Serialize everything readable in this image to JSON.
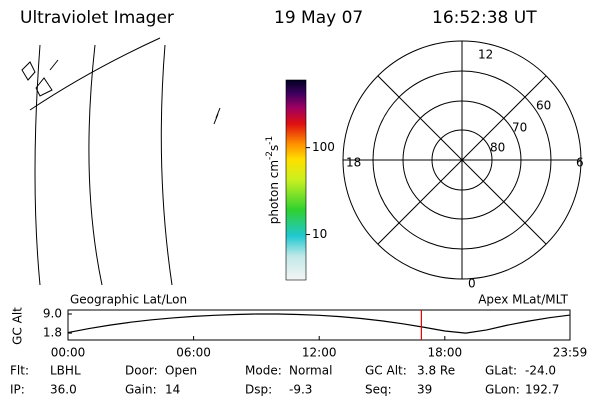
{
  "header": {
    "title": "Ultraviolet Imager",
    "date": "19 May 07",
    "time": "16:52:38 UT"
  },
  "colorbar": {
    "label": [
      "photon cm",
      "-2",
      "s",
      "-1"
    ],
    "clim": [
      3,
      600
    ],
    "log_scale": true,
    "ticks": [
      10,
      100
    ]
  },
  "polar": {
    "lat_labels": [
      "60",
      "70",
      "80"
    ],
    "mlt_labels": [
      "12",
      "18",
      "6",
      "0"
    ]
  },
  "chart_data": {
    "type": "line",
    "y_label": "GC Alt",
    "left_label": "Geographic Lat/Lon",
    "right_label": "Apex MLat/MLT",
    "x": [
      0,
      1,
      2,
      3,
      4,
      5,
      6,
      7,
      8,
      9,
      10,
      11,
      12,
      13,
      14,
      15,
      16,
      17,
      18,
      19,
      20,
      21,
      22,
      23,
      23.98
    ],
    "series": [
      {
        "name": "GC Alt",
        "color": "#000000",
        "values": [
          2.0,
          3.5,
          4.8,
          5.9,
          6.8,
          7.5,
          8.1,
          8.5,
          8.8,
          9.0,
          9.0,
          8.8,
          8.5,
          8.0,
          7.3,
          6.4,
          5.3,
          4.0,
          2.6,
          1.8,
          3.0,
          4.8,
          6.3,
          7.6,
          8.6
        ]
      }
    ],
    "current_time": 16.88,
    "marker_color": "#e00000",
    "xlim": [
      0,
      23.98
    ],
    "ylim": [
      -0.8,
      10.5
    ],
    "xticks": [
      {
        "value": 0,
        "label": "00:00"
      },
      {
        "value": 6,
        "label": "06:00"
      },
      {
        "value": 12,
        "label": "12:00"
      },
      {
        "value": 18,
        "label": "18:00"
      },
      {
        "value": 23.98,
        "label": "23:59"
      }
    ],
    "yticks": [
      {
        "value": 9.0,
        "label": "9.0"
      },
      {
        "value": 1.8,
        "label": "1.8"
      }
    ]
  },
  "info": {
    "rows": [
      [
        [
          "Flt:",
          "LBHL"
        ],
        [
          "Door:",
          "Open"
        ],
        [
          "Mode:",
          "Normal"
        ],
        [
          "GC Alt:",
          "3.8 Re"
        ],
        [
          "GLat:",
          "-24.0"
        ]
      ],
      [
        [
          "IP:",
          "36.0"
        ],
        [
          "Gain:",
          "14"
        ],
        [
          "Dsp:",
          "-9.3"
        ],
        [
          "Seq:",
          "39"
        ],
        [
          "GLon:",
          "192.7"
        ]
      ]
    ]
  }
}
